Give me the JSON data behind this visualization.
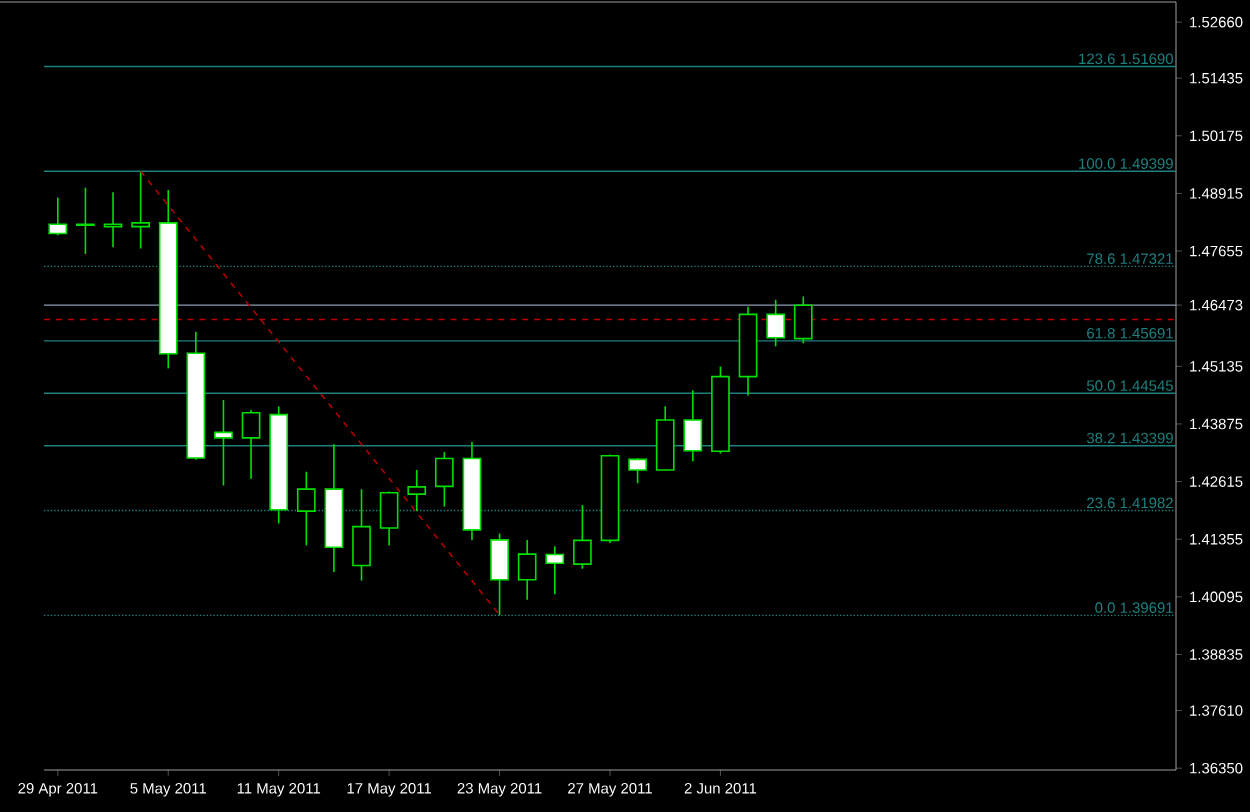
{
  "chart_data": {
    "type": "candlestick",
    "color": "#00e000",
    "categories": [
      "29 Apr 2011",
      null,
      null,
      null,
      "5 May 2011",
      null,
      null,
      null,
      "11 May 2011",
      null,
      null,
      null,
      "17 May 2011",
      null,
      null,
      null,
      "23 May 2011",
      null,
      null,
      null,
      "27 May 2011",
      null,
      null,
      null,
      "2 Jun 2011",
      null,
      null,
      null,
      null,
      null,
      null,
      null,
      null,
      null,
      null,
      null,
      null,
      null,
      null,
      null,
      null
    ],
    "ohlc": [
      [
        1.4824,
        1.4882,
        1.48,
        1.4804
      ],
      [
        1.4822,
        1.4904,
        1.4759,
        1.4824
      ],
      [
        1.4819,
        1.4894,
        1.4774,
        1.4824
      ],
      [
        1.4819,
        1.494,
        1.4771,
        1.4827
      ],
      [
        1.4827,
        1.4899,
        1.4509,
        1.4541
      ],
      [
        1.4542,
        1.4589,
        1.4309,
        1.4313
      ],
      [
        1.4369,
        1.444,
        1.4253,
        1.4357
      ],
      [
        1.4357,
        1.4418,
        1.4268,
        1.4412
      ],
      [
        1.4408,
        1.4426,
        1.417,
        1.42
      ],
      [
        1.4197,
        1.4283,
        1.4122,
        1.4245
      ],
      [
        1.4245,
        1.4343,
        1.4064,
        1.4118
      ],
      [
        1.4078,
        1.4245,
        1.4045,
        1.4163
      ],
      [
        1.416,
        1.424,
        1.4122,
        1.4237
      ],
      [
        1.4234,
        1.4287,
        1.4197,
        1.425
      ],
      [
        1.4251,
        1.4326,
        1.4207,
        1.4312
      ],
      [
        1.4312,
        1.4348,
        1.4134,
        1.4156
      ],
      [
        1.4134,
        1.4148,
        1.3969,
        1.4047
      ],
      [
        1.4047,
        1.4134,
        1.4003,
        1.4103
      ],
      [
        1.4102,
        1.412,
        1.4015,
        1.4083
      ],
      [
        1.4081,
        1.421,
        1.4071,
        1.4133
      ],
      [
        1.4133,
        1.4321,
        1.4127,
        1.4318
      ],
      [
        1.431,
        1.4313,
        1.4258,
        1.4287
      ],
      [
        1.4287,
        1.4426,
        1.4286,
        1.4396
      ],
      [
        1.4396,
        1.4461,
        1.4306,
        1.4329
      ],
      [
        1.4328,
        1.4513,
        1.4323,
        1.4491
      ],
      [
        1.4491,
        1.4644,
        1.445,
        1.4627
      ],
      [
        1.4627,
        1.4659,
        1.4557,
        1.4576
      ],
      [
        1.4574,
        1.4666,
        1.4564,
        1.4647
      ],
      null,
      null,
      null,
      null,
      null,
      null,
      null,
      null,
      null,
      null,
      null,
      null,
      null
    ],
    "series": [
      {
        "type": "line",
        "color": "#b00000",
        "line_style": "dashed",
        "values": [
          null,
          null,
          null,
          1.494,
          null,
          null,
          null,
          null,
          null,
          null,
          null,
          null,
          null,
          null,
          null,
          null,
          1.397,
          null,
          null,
          null,
          null,
          null,
          null,
          null,
          null,
          null,
          null,
          null,
          null,
          null,
          null,
          null,
          null,
          null,
          null,
          null,
          null,
          null,
          null,
          null,
          null
        ]
      }
    ],
    "ylim": [
      1.3631,
      1.531
    ],
    "yticks": [
      {
        "value": 1.5266,
        "label": "1.52660"
      },
      {
        "value": 1.51435,
        "label": "1.51435"
      },
      {
        "value": 1.50175,
        "label": "1.50175"
      },
      {
        "value": 1.48915,
        "label": "1.48915"
      },
      {
        "value": 1.47655,
        "label": "1.47655"
      },
      {
        "value": 1.46473,
        "label": "1.46473"
      },
      {
        "value": 1.45135,
        "label": "1.45135"
      },
      {
        "value": 1.43875,
        "label": "1.43875"
      },
      {
        "value": 1.42615,
        "label": "1.42615"
      },
      {
        "value": 1.41355,
        "label": "1.41355"
      },
      {
        "value": 1.40095,
        "label": "1.40095"
      },
      {
        "value": 1.38835,
        "label": "1.38835"
      },
      {
        "value": 1.3761,
        "label": "1.37610"
      },
      {
        "value": 1.3635,
        "label": "1.36350"
      }
    ],
    "ref_lines": [
      {
        "axis": "y",
        "value": 1.5169,
        "label": "123.6  1.51690",
        "color": "#1f8080"
      },
      {
        "axis": "y",
        "value": 1.49399,
        "label": "100.0  1.49399",
        "color": "#1f8080"
      },
      {
        "axis": "y",
        "value": 1.47321,
        "label": "78.6  1.47321",
        "color": "#1f8080",
        "line_style": "dotted"
      },
      {
        "axis": "y",
        "value": 1.45691,
        "label": "61.8  1.45691",
        "color": "#1f8080"
      },
      {
        "axis": "y",
        "value": 1.44545,
        "label": "50.0  1.44545",
        "color": "#1f8080"
      },
      {
        "axis": "y",
        "value": 1.43399,
        "label": "38.2  1.43399",
        "color": "#1f8080"
      },
      {
        "axis": "y",
        "value": 1.41982,
        "label": "23.6  1.41982",
        "color": "#1f8080",
        "line_style": "dotted"
      },
      {
        "axis": "y",
        "value": 1.39691,
        "label": "0.0  1.39691",
        "color": "#1f8080",
        "line_style": "dotted"
      },
      {
        "axis": "y",
        "value": 1.46473,
        "color": "#8c9cb4"
      },
      {
        "axis": "y",
        "value": 1.4616,
        "color": "#c00000",
        "line_style": "dashed"
      }
    ]
  }
}
